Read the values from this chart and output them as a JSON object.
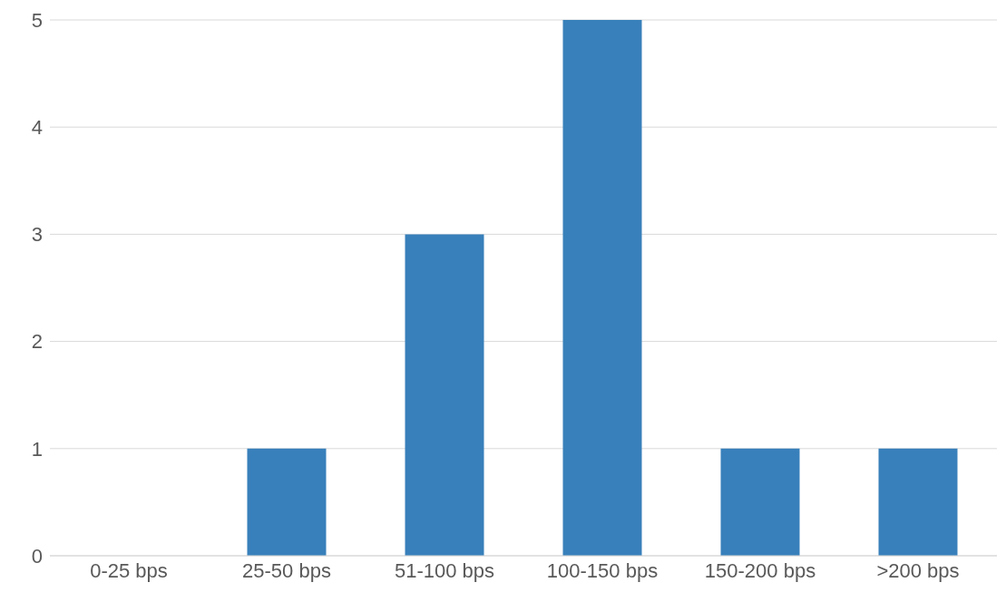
{
  "chart_data": {
    "type": "bar",
    "categories": [
      "0-25 bps",
      "25-50 bps",
      "51-100 bps",
      "100-150 bps",
      "150-200 bps",
      ">200 bps"
    ],
    "values": [
      0,
      1,
      3,
      5,
      1,
      1
    ],
    "color": "#3880bb",
    "ylim": [
      0,
      5
    ],
    "yticks": [
      0,
      1,
      2,
      3,
      4,
      5
    ],
    "grid": "y"
  }
}
